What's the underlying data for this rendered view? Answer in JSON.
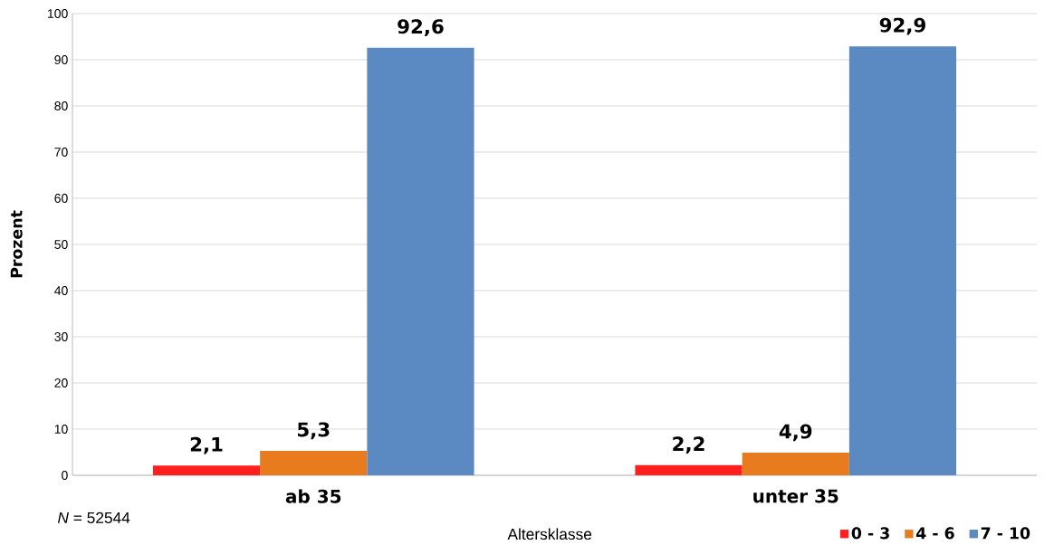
{
  "chart_data": {
    "type": "bar",
    "xlabel": "Altersklasse",
    "ylabel": "Prozent",
    "categories": [
      "ab 35",
      "unter 35"
    ],
    "series": [
      {
        "name": "0 - 3",
        "color": "#ff1f1f",
        "values": [
          2.1,
          2.2
        ],
        "value_labels": [
          "2,1",
          "2,2"
        ]
      },
      {
        "name": "4 - 6",
        "color": "#e87b1e",
        "values": [
          5.3,
          4.9
        ],
        "value_labels": [
          "5,3",
          "4,9"
        ]
      },
      {
        "name": "7 - 10",
        "color": "#5b8ac3",
        "values": [
          92.6,
          92.9
        ],
        "value_labels": [
          "92,6",
          "92,9"
        ]
      }
    ],
    "ylim": [
      0,
      100
    ],
    "yticks": [
      0,
      10,
      20,
      30,
      40,
      50,
      60,
      70,
      80,
      90,
      100
    ],
    "grid": "y",
    "legend": "bottom right",
    "annotations": [
      "*N* = 52544"
    ]
  }
}
